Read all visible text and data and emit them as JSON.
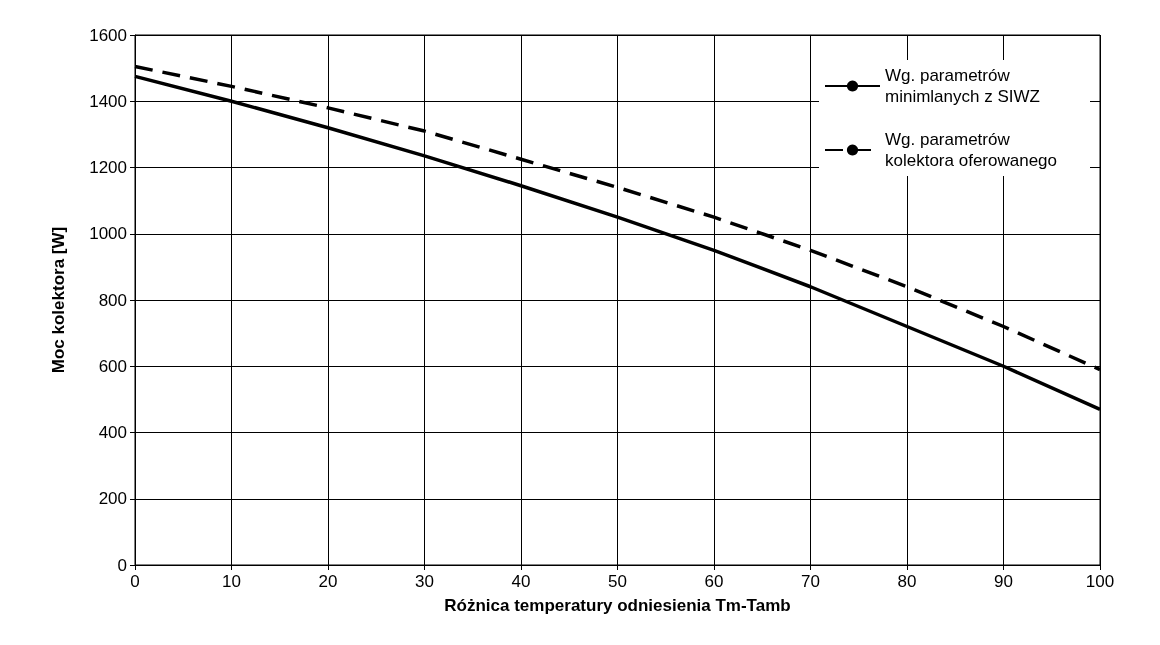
{
  "chart_data": {
    "type": "line",
    "xlabel": "Różnica temperatury odniesienia Tm-Tamb",
    "ylabel": "Moc kolektora [W]",
    "x": [
      0,
      10,
      20,
      30,
      40,
      50,
      60,
      70,
      80,
      90,
      100
    ],
    "series": [
      {
        "name": "Wg. parametrów minimlanych z SIWZ",
        "color": "#000000",
        "line_style": "solid",
        "values": [
          1475,
          1400,
          1320,
          1235,
          1145,
          1050,
          950,
          840,
          720,
          600,
          470
        ]
      },
      {
        "name": "Wg. parametrów kolektora oferowanego",
        "color": "#000000",
        "line_style": "dashed",
        "values": [
          1505,
          1445,
          1380,
          1310,
          1225,
          1140,
          1050,
          950,
          840,
          720,
          590
        ]
      }
    ],
    "xlim": [
      0,
      100
    ],
    "xticks": [
      0,
      10,
      20,
      30,
      40,
      50,
      60,
      70,
      80,
      90,
      100
    ],
    "ylim": [
      0,
      1600
    ],
    "yticks": [
      0,
      200,
      400,
      600,
      800,
      1000,
      1200,
      1400,
      1600
    ],
    "grid": true,
    "legend": "top right",
    "marker": "none"
  }
}
